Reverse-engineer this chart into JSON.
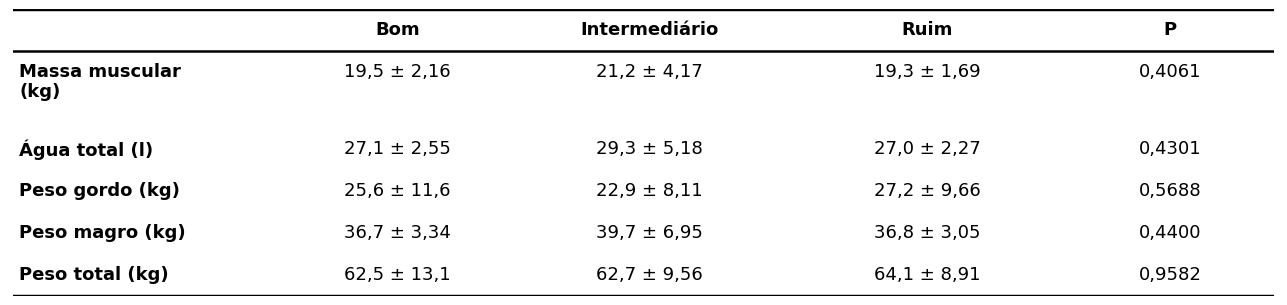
{
  "columns": [
    "",
    "Bom",
    "Intermediário",
    "Ruim",
    "P"
  ],
  "rows": [
    [
      "Massa muscular\n(kg)",
      "19,5 ± 2,16",
      "21,2 ± 4,17",
      "19,3 ± 1,69",
      "0,4061"
    ],
    [
      "Água total (l)",
      "27,1 ± 2,55",
      "29,3 ± 5,18",
      "27,0 ± 2,27",
      "0,4301"
    ],
    [
      "Peso gordo (kg)",
      "25,6 ± 11,6",
      "22,9 ± 8,11",
      "27,2 ± 9,66",
      "0,5688"
    ],
    [
      "Peso magro (kg)",
      "36,7 ± 3,34",
      "39,7 ± 6,95",
      "36,8 ± 3,05",
      "0,4400"
    ],
    [
      "Peso total (kg)",
      "62,5 ± 13,1",
      "62,7 ± 9,56",
      "64,1 ± 8,91",
      "0,9582"
    ]
  ],
  "background_color": "#ffffff",
  "font_size": 13,
  "header_font_size": 13,
  "figsize": [
    12.87,
    3.05
  ],
  "dpi": 100
}
